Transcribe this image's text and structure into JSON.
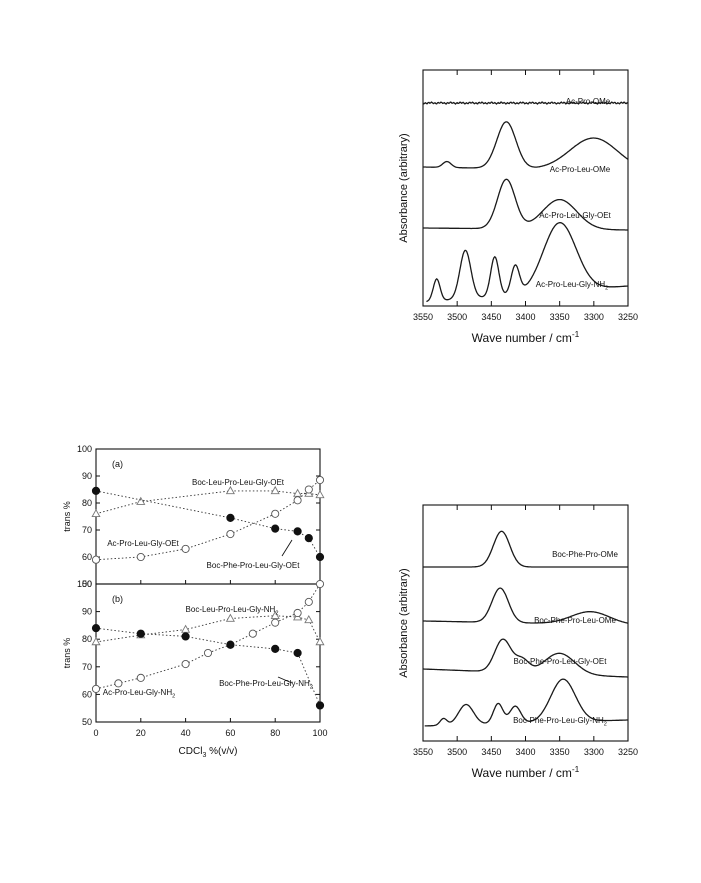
{
  "chart_data": [
    {
      "type": "line",
      "panel": "ir-top",
      "xlabel": "Wave number / cm",
      "xlabel_sup": "-1",
      "ylabel": "Absorbance (arbitrary)",
      "xlim": [
        3550,
        3250
      ],
      "xticks": [
        3550,
        3500,
        3450,
        3400,
        3350,
        3300,
        3250
      ],
      "series": [
        {
          "name": "Ac-Pro-OMe",
          "label": "Ac-Pro-OMe",
          "label_sub": "",
          "baseline": 0.0,
          "bands": []
        },
        {
          "name": "Ac-Pro-Leu-OMe",
          "label": "Ac-Pro-Leu-OMe",
          "label_sub": "",
          "baseline": 0.0,
          "bands": [
            [
              3428,
              0.55,
              14
            ],
            [
              3300,
              0.38,
              35
            ],
            [
              3515,
              0.07,
              6
            ]
          ]
        },
        {
          "name": "Ac-Pro-Leu-Gly-OEt",
          "label": "Ac-Pro-Leu-Gly-OEt",
          "label_sub": "",
          "baseline": 0.0,
          "bands": [
            [
              3428,
              0.58,
              13
            ],
            [
              3350,
              0.35,
              25
            ]
          ]
        },
        {
          "name": "Ac-Pro-Leu-Gly-NH2",
          "label": "Ac-Pro-Leu-Gly-NH",
          "label_sub": "2",
          "baseline": 0.0,
          "bands": [
            [
              3530,
              0.25,
              5
            ],
            [
              3488,
              0.55,
              8
            ],
            [
              3445,
              0.45,
              6
            ],
            [
              3415,
              0.32,
              6
            ],
            [
              3350,
              0.78,
              24
            ]
          ]
        }
      ]
    },
    {
      "type": "line",
      "panel": "ir-bottom",
      "xlabel": "Wave number / cm",
      "xlabel_sup": "-1",
      "ylabel": "Absorbance (arbitrary)",
      "xlim": [
        3550,
        3250
      ],
      "xticks": [
        3550,
        3500,
        3450,
        3400,
        3350,
        3300,
        3250
      ],
      "series": [
        {
          "name": "Boc-Phe-Pro-OMe",
          "label": "Boc-Phe-Pro-OMe",
          "label_sub": "",
          "bands": [
            [
              3435,
              0.85,
              12
            ]
          ]
        },
        {
          "name": "Boc-Phe-Pro-Leu-OMe",
          "label": "Boc-Phe-Pro-Leu-OMe",
          "label_sub": "",
          "bands": [
            [
              3437,
              0.82,
              12
            ],
            [
              3305,
              0.3,
              28
            ]
          ]
        },
        {
          "name": "Boc-Phe-Pro-Leu-Gly-OEt",
          "label": "Boc-Phe-Pro-Leu-Gly-OEt",
          "label_sub": "",
          "bands": [
            [
              3433,
              0.78,
              12
            ],
            [
              3405,
              0.3,
              10
            ],
            [
              3350,
              0.5,
              22
            ]
          ]
        },
        {
          "name": "Boc-Phe-Pro-Leu-Gly-NH2",
          "label": "Boc-Phe-Pro-Leu-Gly-NH",
          "label_sub": "2",
          "bands": [
            [
              3520,
              0.15,
              5
            ],
            [
              3487,
              0.45,
              11
            ],
            [
              3440,
              0.45,
              7
            ],
            [
              3415,
              0.38,
              8
            ],
            [
              3345,
              0.95,
              18
            ]
          ]
        }
      ]
    },
    {
      "type": "scatter",
      "panel": "a",
      "panel_label": "(a)",
      "xlabel": "CDCl",
      "xlabel_sub": "3",
      "xlabel_suffix": " %(v/v)",
      "ylabel": "trans %",
      "xlim": [
        0,
        100
      ],
      "ylim": [
        50,
        100
      ],
      "xticks": [
        0,
        20,
        40,
        60,
        80,
        100
      ],
      "yticks": [
        50,
        60,
        70,
        80,
        90,
        100
      ],
      "series": [
        {
          "name": "Boc-Leu-Pro-Leu-Gly-OEt",
          "label": "Boc-Leu-Pro-Leu-Gly-OEt",
          "label_sub": "",
          "marker": "triangle",
          "x": [
            0,
            20,
            60,
            80,
            90,
            95,
            100
          ],
          "y": [
            76,
            80.5,
            84.5,
            84.5,
            83.5,
            83.5,
            83
          ]
        },
        {
          "name": "Ac-Pro-Leu-Gly-OEt",
          "label": "Ac-Pro-Leu-Gly-OEt",
          "label_sub": "",
          "marker": "open-circle",
          "x": [
            0,
            20,
            40,
            60,
            80,
            90,
            95,
            100
          ],
          "y": [
            59,
            60,
            63,
            68.5,
            76,
            81,
            85,
            88.5
          ]
        },
        {
          "name": "Boc-Phe-Pro-Leu-Gly-OEt",
          "label": "Boc-Phe-Pro-Leu-Gly-OEt",
          "label_sub": "",
          "marker": "filled-circle",
          "x": [
            0,
            60,
            80,
            90,
            95,
            100
          ],
          "y": [
            84.5,
            74.5,
            70.5,
            69.5,
            67,
            60
          ]
        }
      ]
    },
    {
      "type": "scatter",
      "panel": "b",
      "panel_label": "(b)",
      "xlabel": "CDCl",
      "xlabel_sub": "3",
      "xlabel_suffix": " %(v/v)",
      "ylabel": "trans %",
      "xlim": [
        0,
        100
      ],
      "ylim": [
        50,
        100
      ],
      "xticks": [
        0,
        20,
        40,
        60,
        80,
        100
      ],
      "yticks": [
        50,
        60,
        70,
        80,
        90,
        100
      ],
      "series": [
        {
          "name": "Boc-Leu-Pro-Leu-Gly-NH2",
          "label": "Boc-Leu-Pro-Leu-Gly-NH",
          "label_sub": "2",
          "marker": "triangle",
          "x": [
            0,
            20,
            40,
            60,
            80,
            90,
            95,
            100
          ],
          "y": [
            79,
            81.5,
            83.5,
            87.5,
            88.5,
            88,
            87,
            79
          ]
        },
        {
          "name": "Ac-Pro-Leu-Gly-NH2",
          "label": "Ac-Pro-Leu-Gly-NH",
          "label_sub": "2",
          "marker": "open-circle",
          "x": [
            0,
            10,
            20,
            40,
            50,
            60,
            70,
            80,
            90,
            95,
            100
          ],
          "y": [
            62,
            64,
            66,
            71,
            75,
            78,
            82,
            86,
            89.5,
            93.5,
            100
          ]
        },
        {
          "name": "Boc-Phe-Pro-Leu-Gly-NH2",
          "label": "Boc-Phe-Pro-Leu-Gly-NH",
          "label_sub": "2",
          "marker": "filled-circle",
          "x": [
            0,
            20,
            40,
            60,
            80,
            90,
            100
          ],
          "y": [
            84,
            82,
            81,
            78,
            76.5,
            75,
            56
          ]
        }
      ]
    }
  ]
}
